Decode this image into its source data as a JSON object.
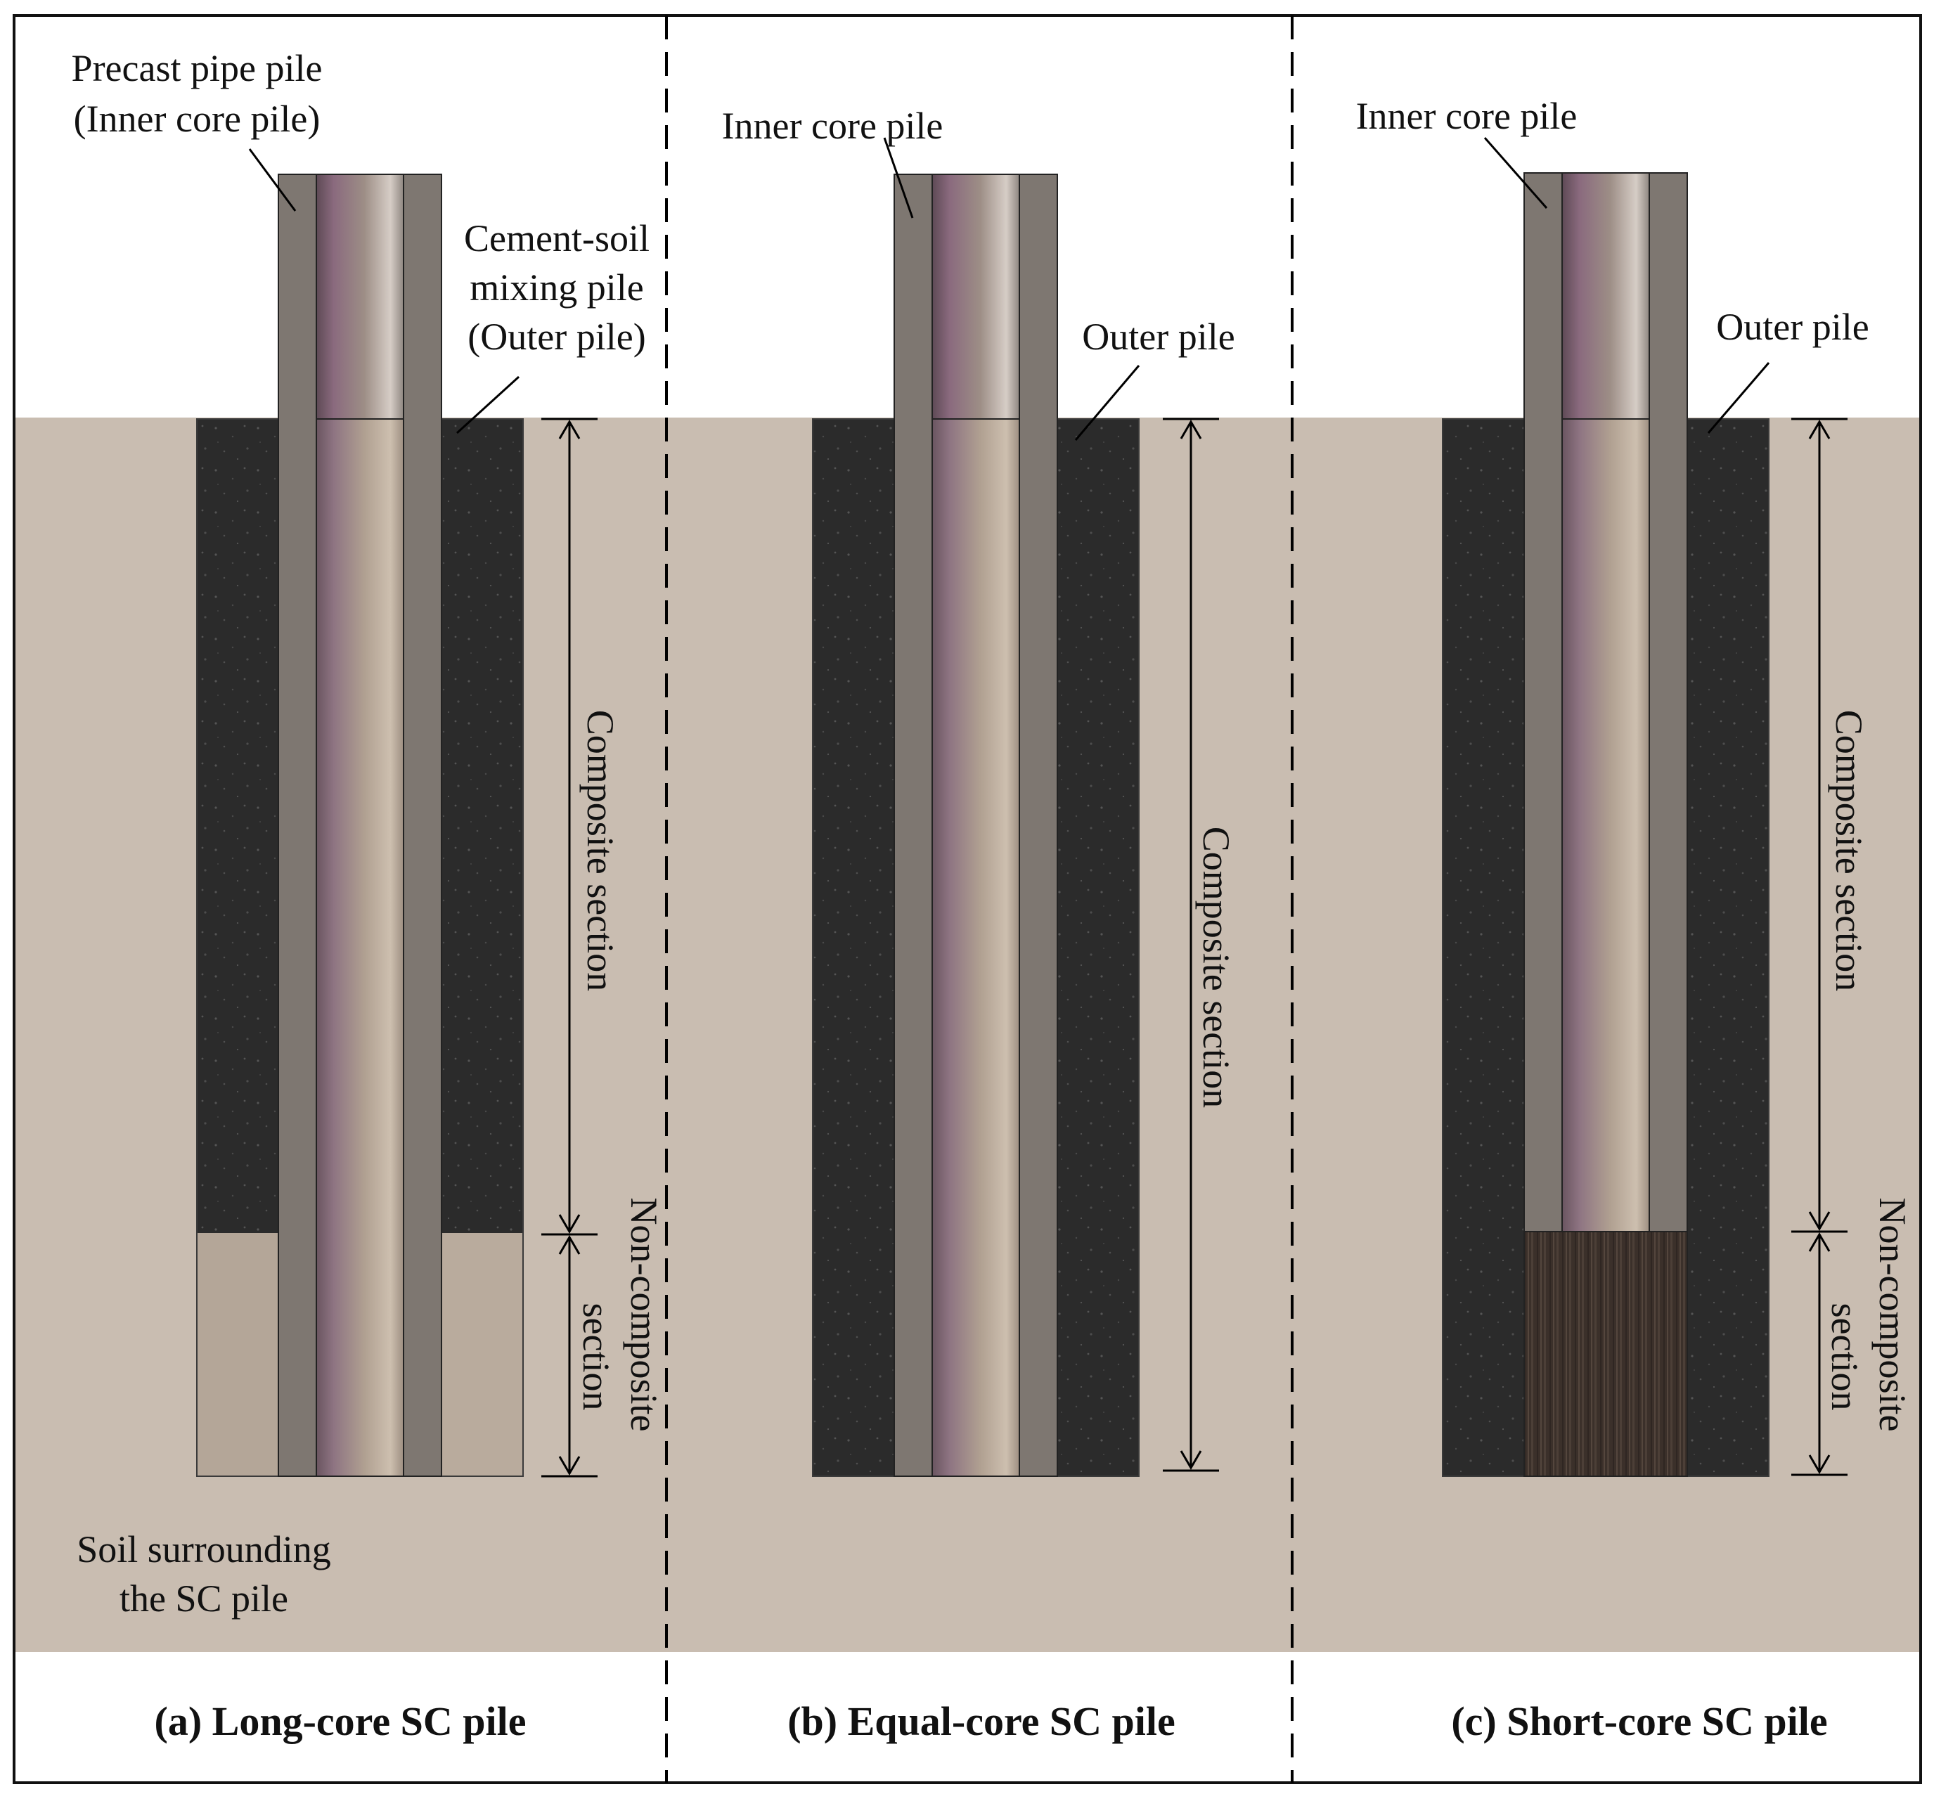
{
  "colors": {
    "soil": "#c8bcb0",
    "cement_soil": "#2e2e2e",
    "pipe_wall": "#7d7670",
    "pipe_bore_dark": "#6b4e62",
    "pipe_bore_light": "#d8cfc8",
    "soil_block": "#b3a597",
    "short_core_base": "#3a2f29"
  },
  "panels": {
    "a": {
      "caption": "(a) Long-core SC pile",
      "label_precast_1": "Precast pipe pile",
      "label_precast_2": "(Inner core pile)",
      "label_cement_1": "Cement-soil",
      "label_cement_2": "mixing pile",
      "label_cement_3": "(Outer pile)",
      "label_composite": "Composite section",
      "label_noncomp_1": "Non-composite",
      "label_noncomp_2": "section",
      "label_soil_1": "Soil surrounding",
      "label_soil_2": "the SC pile"
    },
    "b": {
      "caption": "(b) Equal-core SC pile",
      "label_inner": "Inner core pile",
      "label_outer": "Outer pile",
      "label_composite": "Composite section"
    },
    "c": {
      "caption": "(c) Short-core SC pile",
      "label_inner": "Inner core pile",
      "label_outer": "Outer pile",
      "label_composite": "Composite section",
      "label_noncomp_1": "Non-composite",
      "label_noncomp_2": "section"
    }
  }
}
